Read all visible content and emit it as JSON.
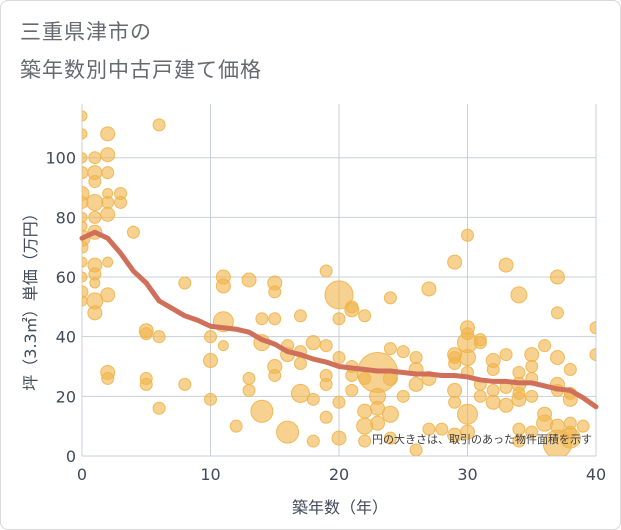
{
  "title_line1": "三重県津市の",
  "title_line2": "築年数別中古戸建て価格",
  "colors": {
    "bubble": "#f0b44c",
    "trend": "#d0705a",
    "grid": "#c8cfd8",
    "axis": "#404a59"
  },
  "chart_data": {
    "type": "scatter",
    "xlabel": "築年数（年）",
    "ylabel": "坪（3.3㎡）単価（万円）",
    "xlim": [
      0,
      40
    ],
    "ylim": [
      0,
      118
    ],
    "xticks": [
      0,
      10,
      20,
      30,
      40
    ],
    "yticks": [
      0,
      20,
      40,
      60,
      80,
      100
    ],
    "annotation": "円の大きさは、取引のあった物件面積を示す",
    "grid": true,
    "points": [
      {
        "x": 0,
        "y": 114,
        "s": 5
      },
      {
        "x": 0,
        "y": 108,
        "s": 5
      },
      {
        "x": 0,
        "y": 100,
        "s": 5
      },
      {
        "x": 0,
        "y": 95,
        "s": 6
      },
      {
        "x": 0,
        "y": 88,
        "s": 7
      },
      {
        "x": 0,
        "y": 85,
        "s": 6
      },
      {
        "x": 0,
        "y": 80,
        "s": 5
      },
      {
        "x": 0,
        "y": 77,
        "s": 5
      },
      {
        "x": 0,
        "y": 73,
        "s": 8
      },
      {
        "x": 0,
        "y": 70,
        "s": 6
      },
      {
        "x": 0,
        "y": 65,
        "s": 5
      },
      {
        "x": 0,
        "y": 60,
        "s": 5
      },
      {
        "x": 0,
        "y": 55,
        "s": 6
      },
      {
        "x": 0,
        "y": 52,
        "s": 5
      },
      {
        "x": 1,
        "y": 100,
        "s": 6
      },
      {
        "x": 1,
        "y": 95,
        "s": 7
      },
      {
        "x": 1,
        "y": 92,
        "s": 6
      },
      {
        "x": 1,
        "y": 85,
        "s": 8
      },
      {
        "x": 1,
        "y": 80,
        "s": 6
      },
      {
        "x": 1,
        "y": 75,
        "s": 7
      },
      {
        "x": 1,
        "y": 64,
        "s": 7
      },
      {
        "x": 1,
        "y": 61,
        "s": 6
      },
      {
        "x": 1,
        "y": 58,
        "s": 5
      },
      {
        "x": 1,
        "y": 52,
        "s": 8
      },
      {
        "x": 1,
        "y": 48,
        "s": 7
      },
      {
        "x": 2,
        "y": 108,
        "s": 7
      },
      {
        "x": 2,
        "y": 101,
        "s": 7
      },
      {
        "x": 2,
        "y": 95,
        "s": 6
      },
      {
        "x": 2,
        "y": 88,
        "s": 5
      },
      {
        "x": 2,
        "y": 85,
        "s": 6
      },
      {
        "x": 2,
        "y": 81,
        "s": 7
      },
      {
        "x": 2,
        "y": 65,
        "s": 5
      },
      {
        "x": 2,
        "y": 54,
        "s": 7
      },
      {
        "x": 2,
        "y": 28,
        "s": 7
      },
      {
        "x": 2,
        "y": 26,
        "s": 6
      },
      {
        "x": 3,
        "y": 88,
        "s": 6
      },
      {
        "x": 3,
        "y": 85,
        "s": 6
      },
      {
        "x": 4,
        "y": 75,
        "s": 6
      },
      {
        "x": 5,
        "y": 42,
        "s": 7
      },
      {
        "x": 5,
        "y": 41,
        "s": 6
      },
      {
        "x": 5,
        "y": 26,
        "s": 6
      },
      {
        "x": 5,
        "y": 24,
        "s": 6
      },
      {
        "x": 6,
        "y": 111,
        "s": 6
      },
      {
        "x": 6,
        "y": 40,
        "s": 6
      },
      {
        "x": 6,
        "y": 16,
        "s": 6
      },
      {
        "x": 8,
        "y": 58,
        "s": 6
      },
      {
        "x": 8,
        "y": 24,
        "s": 6
      },
      {
        "x": 10,
        "y": 40,
        "s": 6
      },
      {
        "x": 10,
        "y": 32,
        "s": 7
      },
      {
        "x": 10,
        "y": 19,
        "s": 6
      },
      {
        "x": 11,
        "y": 60,
        "s": 7
      },
      {
        "x": 11,
        "y": 57,
        "s": 7
      },
      {
        "x": 11,
        "y": 45,
        "s": 10
      },
      {
        "x": 11,
        "y": 37,
        "s": 5
      },
      {
        "x": 12,
        "y": 10,
        "s": 6
      },
      {
        "x": 13,
        "y": 59,
        "s": 7
      },
      {
        "x": 13,
        "y": 26,
        "s": 6
      },
      {
        "x": 13,
        "y": 22,
        "s": 6
      },
      {
        "x": 14,
        "y": 46,
        "s": 6
      },
      {
        "x": 14,
        "y": 38,
        "s": 8
      },
      {
        "x": 14,
        "y": 15,
        "s": 11
      },
      {
        "x": 15,
        "y": 58,
        "s": 7
      },
      {
        "x": 15,
        "y": 55,
        "s": 6
      },
      {
        "x": 15,
        "y": 46,
        "s": 6
      },
      {
        "x": 15,
        "y": 30,
        "s": 7
      },
      {
        "x": 15,
        "y": 27,
        "s": 6
      },
      {
        "x": 16,
        "y": 37,
        "s": 6
      },
      {
        "x": 16,
        "y": 34,
        "s": 7
      },
      {
        "x": 16,
        "y": 8,
        "s": 11
      },
      {
        "x": 17,
        "y": 47,
        "s": 6
      },
      {
        "x": 17,
        "y": 35,
        "s": 6
      },
      {
        "x": 17,
        "y": 31,
        "s": 6
      },
      {
        "x": 17,
        "y": 21,
        "s": 9
      },
      {
        "x": 18,
        "y": 38,
        "s": 7
      },
      {
        "x": 18,
        "y": 19,
        "s": 6
      },
      {
        "x": 18,
        "y": 5,
        "s": 6
      },
      {
        "x": 19,
        "y": 62,
        "s": 6
      },
      {
        "x": 19,
        "y": 37,
        "s": 6
      },
      {
        "x": 19,
        "y": 27,
        "s": 6
      },
      {
        "x": 19,
        "y": 24,
        "s": 6
      },
      {
        "x": 19,
        "y": 13,
        "s": 6
      },
      {
        "x": 20,
        "y": 54,
        "s": 14
      },
      {
        "x": 20,
        "y": 46,
        "s": 6
      },
      {
        "x": 20,
        "y": 33,
        "s": 6
      },
      {
        "x": 20,
        "y": 18,
        "s": 6
      },
      {
        "x": 20,
        "y": 6,
        "s": 7
      },
      {
        "x": 21,
        "y": 50,
        "s": 6
      },
      {
        "x": 21,
        "y": 49,
        "s": 7
      },
      {
        "x": 21,
        "y": 30,
        "s": 6
      },
      {
        "x": 21,
        "y": 27,
        "s": 6
      },
      {
        "x": 21,
        "y": 22,
        "s": 6
      },
      {
        "x": 22,
        "y": 47,
        "s": 6
      },
      {
        "x": 22,
        "y": 26,
        "s": 6
      },
      {
        "x": 22,
        "y": 15,
        "s": 7
      },
      {
        "x": 22,
        "y": 10,
        "s": 8
      },
      {
        "x": 22,
        "y": 5,
        "s": 6
      },
      {
        "x": 23,
        "y": 28,
        "s": 20
      },
      {
        "x": 23,
        "y": 20,
        "s": 8
      },
      {
        "x": 23,
        "y": 16,
        "s": 7
      },
      {
        "x": 23,
        "y": 11,
        "s": 7
      },
      {
        "x": 24,
        "y": 53,
        "s": 6
      },
      {
        "x": 24,
        "y": 36,
        "s": 6
      },
      {
        "x": 24,
        "y": 26,
        "s": 7
      },
      {
        "x": 24,
        "y": 14,
        "s": 8
      },
      {
        "x": 24,
        "y": 6,
        "s": 6
      },
      {
        "x": 25,
        "y": 35,
        "s": 6
      },
      {
        "x": 25,
        "y": 20,
        "s": 6
      },
      {
        "x": 26,
        "y": 33,
        "s": 6
      },
      {
        "x": 26,
        "y": 29,
        "s": 7
      },
      {
        "x": 26,
        "y": 24,
        "s": 7
      },
      {
        "x": 26,
        "y": 2,
        "s": 6
      },
      {
        "x": 27,
        "y": 56,
        "s": 7
      },
      {
        "x": 27,
        "y": 26,
        "s": 7
      },
      {
        "x": 27,
        "y": 9,
        "s": 6
      },
      {
        "x": 28,
        "y": 9,
        "s": 6
      },
      {
        "x": 29,
        "y": 65,
        "s": 7
      },
      {
        "x": 29,
        "y": 34,
        "s": 7
      },
      {
        "x": 29,
        "y": 33,
        "s": 6
      },
      {
        "x": 29,
        "y": 31,
        "s": 6
      },
      {
        "x": 29,
        "y": 22,
        "s": 7
      },
      {
        "x": 29,
        "y": 18,
        "s": 6
      },
      {
        "x": 29,
        "y": 7,
        "s": 7
      },
      {
        "x": 30,
        "y": 74,
        "s": 6
      },
      {
        "x": 30,
        "y": 43,
        "s": 7
      },
      {
        "x": 30,
        "y": 41,
        "s": 6
      },
      {
        "x": 30,
        "y": 38,
        "s": 10
      },
      {
        "x": 30,
        "y": 33,
        "s": 8
      },
      {
        "x": 30,
        "y": 28,
        "s": 6
      },
      {
        "x": 30,
        "y": 14,
        "s": 10
      },
      {
        "x": 30,
        "y": 8,
        "s": 7
      },
      {
        "x": 31,
        "y": 39,
        "s": 6
      },
      {
        "x": 31,
        "y": 38,
        "s": 6
      },
      {
        "x": 31,
        "y": 24,
        "s": 6
      },
      {
        "x": 31,
        "y": 20,
        "s": 6
      },
      {
        "x": 32,
        "y": 32,
        "s": 7
      },
      {
        "x": 32,
        "y": 29,
        "s": 6
      },
      {
        "x": 32,
        "y": 22,
        "s": 6
      },
      {
        "x": 32,
        "y": 18,
        "s": 7
      },
      {
        "x": 33,
        "y": 64,
        "s": 7
      },
      {
        "x": 33,
        "y": 34,
        "s": 6
      },
      {
        "x": 33,
        "y": 23,
        "s": 6
      },
      {
        "x": 33,
        "y": 17,
        "s": 7
      },
      {
        "x": 34,
        "y": 54,
        "s": 8
      },
      {
        "x": 34,
        "y": 28,
        "s": 6
      },
      {
        "x": 34,
        "y": 24,
        "s": 7
      },
      {
        "x": 34,
        "y": 21,
        "s": 6
      },
      {
        "x": 34,
        "y": 19,
        "s": 7
      },
      {
        "x": 34,
        "y": 9,
        "s": 6
      },
      {
        "x": 34,
        "y": 5,
        "s": 6
      },
      {
        "x": 35,
        "y": 34,
        "s": 7
      },
      {
        "x": 35,
        "y": 30,
        "s": 6
      },
      {
        "x": 35,
        "y": 26,
        "s": 6
      },
      {
        "x": 35,
        "y": 20,
        "s": 6
      },
      {
        "x": 35,
        "y": 8,
        "s": 6
      },
      {
        "x": 36,
        "y": 37,
        "s": 6
      },
      {
        "x": 36,
        "y": 14,
        "s": 7
      },
      {
        "x": 36,
        "y": 11,
        "s": 8
      },
      {
        "x": 37,
        "y": 60,
        "s": 7
      },
      {
        "x": 37,
        "y": 48,
        "s": 6
      },
      {
        "x": 37,
        "y": 33,
        "s": 7
      },
      {
        "x": 37,
        "y": 24,
        "s": 7
      },
      {
        "x": 37,
        "y": 22,
        "s": 6
      },
      {
        "x": 37,
        "y": 10,
        "s": 7
      },
      {
        "x": 37,
        "y": 4,
        "s": 14
      },
      {
        "x": 38,
        "y": 29,
        "s": 6
      },
      {
        "x": 38,
        "y": 21,
        "s": 6
      },
      {
        "x": 38,
        "y": 19,
        "s": 7
      },
      {
        "x": 38,
        "y": 11,
        "s": 6
      },
      {
        "x": 38,
        "y": 8,
        "s": 6
      },
      {
        "x": 38,
        "y": 6,
        "s": 10
      },
      {
        "x": 39,
        "y": 10,
        "s": 6
      },
      {
        "x": 40,
        "y": 43,
        "s": 6
      },
      {
        "x": 40,
        "y": 34,
        "s": 6
      }
    ],
    "trend": {
      "x": [
        0,
        1,
        2,
        3,
        4,
        5,
        6,
        7,
        8,
        9,
        10,
        11,
        12,
        13,
        14,
        15,
        16,
        17,
        18,
        19,
        20,
        21,
        22,
        23,
        24,
        25,
        26,
        27,
        28,
        29,
        30,
        31,
        32,
        33,
        34,
        35,
        36,
        37,
        38,
        39,
        40
      ],
      "y": [
        73,
        75,
        73,
        68,
        62,
        58,
        52,
        49.5,
        47,
        45.5,
        43.5,
        43,
        42.5,
        41.5,
        39,
        37.5,
        35,
        34,
        32.5,
        31.5,
        30,
        29.5,
        29,
        28.5,
        28.5,
        28,
        27.5,
        27.5,
        27,
        27,
        26.5,
        25.5,
        25,
        25,
        24.5,
        24.5,
        23.5,
        22.5,
        22,
        19.5,
        16.5
      ]
    }
  }
}
